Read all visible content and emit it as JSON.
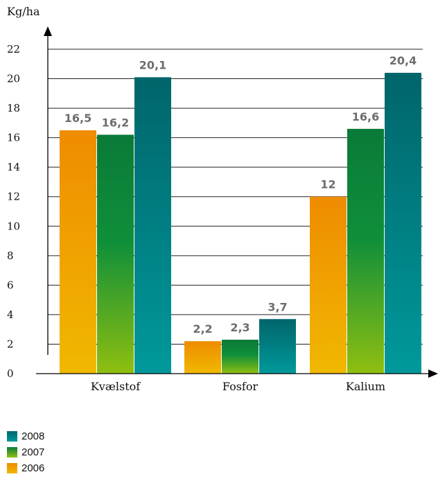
{
  "chart_data": {
    "type": "bar",
    "ylabel": "Kg/ha",
    "xlabel": "",
    "ylim": [
      0,
      22
    ],
    "yticks": [
      "0",
      "2",
      "4",
      "6",
      "8",
      "10",
      "12",
      "14",
      "16",
      "18",
      "20",
      "22"
    ],
    "categories": [
      "Kvælstof",
      "Fosfor",
      "Kalium"
    ],
    "series": [
      {
        "name": "2006",
        "values": [
          16.5,
          2.2,
          12
        ],
        "labels": [
          "16,5",
          "2,2",
          "12"
        ],
        "color": "#f0a500"
      },
      {
        "name": "2007",
        "values": [
          16.2,
          2.3,
          16.6
        ],
        "labels": [
          "16,2",
          "2,3",
          "16,6"
        ],
        "color": "#0e8a3f"
      },
      {
        "name": "2008",
        "values": [
          20.1,
          3.7,
          20.4
        ],
        "labels": [
          "20,1",
          "3,7",
          "20,4"
        ],
        "color": "#007a80"
      }
    ],
    "grid": true,
    "legend_position": "bottom-left",
    "legend_order": [
      "2008",
      "2007",
      "2006"
    ]
  }
}
